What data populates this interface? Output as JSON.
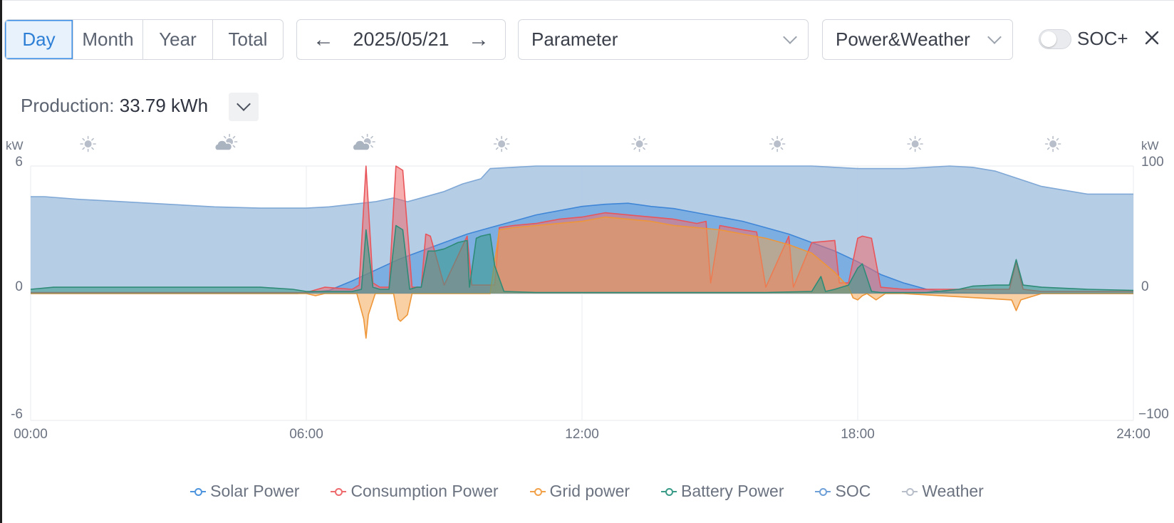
{
  "toolbar": {
    "tabs": [
      {
        "label": "Day",
        "active": true
      },
      {
        "label": "Month",
        "active": false
      },
      {
        "label": "Year",
        "active": false
      },
      {
        "label": "Total",
        "active": false
      }
    ],
    "prev_icon": "arrow-left",
    "date": "2025/05/21",
    "next_icon": "arrow-right",
    "parameter_select": "Parameter",
    "view_select": "Power&Weather",
    "soc_toggle_label": "SOC+",
    "soc_toggle_on": false,
    "close_icon": "close"
  },
  "summary": {
    "label": "Production:",
    "value": "33.79 kWh",
    "expand_icon": "chevron-down"
  },
  "colors": {
    "accent": "#3a8ee6",
    "solar": "#4f95de",
    "consumption": "#ee6b6e",
    "grid": "#f2a24a",
    "battery": "#3a9b88",
    "soc": "#a9c4e2",
    "weather": "#b8bfca"
  },
  "chart_data": {
    "type": "area",
    "left_axis": {
      "unit": "kW",
      "range": [
        -6,
        6
      ],
      "ticks": [
        "6",
        "0",
        "-6"
      ]
    },
    "right_axis": {
      "unit": "kW",
      "range": [
        -100,
        100
      ],
      "ticks": [
        "100",
        "0",
        "−100"
      ]
    },
    "x_range_hours": [
      0,
      24
    ],
    "x_ticks": [
      "00:00",
      "06:00",
      "12:00",
      "18:00",
      "24:00"
    ],
    "weather": [
      {
        "hour": 1.25,
        "icon": "sunny"
      },
      {
        "hour": 4.25,
        "icon": "partly-cloudy"
      },
      {
        "hour": 7.25,
        "icon": "partly-cloudy"
      },
      {
        "hour": 10.25,
        "icon": "sunny"
      },
      {
        "hour": 13.25,
        "icon": "sunny"
      },
      {
        "hour": 16.25,
        "icon": "sunny"
      },
      {
        "hour": 19.25,
        "icon": "sunny"
      },
      {
        "hour": 22.25,
        "icon": "sunny"
      }
    ],
    "series": [
      {
        "name": "SOC",
        "axis": "right",
        "x": [
          0,
          0.3,
          1,
          2,
          3,
          4,
          5,
          5.5,
          6,
          6.5,
          7,
          7.5,
          7.9,
          8.2,
          8.5,
          9,
          9.4,
          9.8,
          10,
          10.5,
          11,
          12,
          14,
          16,
          17,
          17.5,
          18,
          19,
          20,
          20.5,
          21,
          22,
          23,
          24
        ],
        "values": [
          76,
          76,
          74,
          72,
          70,
          68,
          67,
          67,
          67,
          68,
          70,
          72,
          75,
          72,
          75,
          80,
          86,
          90,
          98,
          99,
          100,
          100,
          100,
          100,
          100,
          99,
          98,
          98,
          100,
          99,
          96,
          84,
          78,
          78
        ]
      },
      {
        "name": "Solar Power",
        "axis": "left",
        "x": [
          0,
          5.8,
          6.5,
          7,
          7.5,
          8,
          8.5,
          9,
          9.5,
          10,
          10.5,
          11,
          11.5,
          12,
          12.5,
          13,
          13.5,
          14,
          14.5,
          15,
          15.5,
          16,
          16.5,
          17,
          17.5,
          18,
          18.5,
          19,
          19.5,
          20,
          21,
          24
        ],
        "values": [
          0,
          0,
          0.15,
          0.6,
          1.1,
          1.6,
          2.0,
          2.4,
          2.8,
          3.1,
          3.4,
          3.7,
          3.9,
          4.1,
          4.2,
          4.25,
          4.1,
          4.0,
          3.8,
          3.6,
          3.4,
          3.1,
          2.8,
          2.4,
          2.0,
          1.5,
          0.9,
          0.5,
          0.2,
          0.05,
          0,
          0
        ]
      },
      {
        "name": "Consumption Power",
        "axis": "left",
        "x": [
          0,
          6,
          6.4,
          7.0,
          7.15,
          7.3,
          7.45,
          7.6,
          7.8,
          7.95,
          8.1,
          8.3,
          8.5,
          8.6,
          8.7,
          9.0,
          9.5,
          9.6,
          9.8,
          10.1,
          10.2,
          10.5,
          11,
          11.5,
          12,
          12.5,
          13,
          13.5,
          14,
          14.5,
          14.7,
          14.8,
          15,
          15.5,
          15.8,
          16.0,
          16.5,
          16.6,
          17.0,
          17.5,
          17.6,
          17.8,
          18.0,
          18.1,
          18.3,
          18.5,
          19,
          21.3,
          21.45,
          21.6,
          22,
          24
        ],
        "values": [
          0.05,
          0.05,
          0.3,
          0.2,
          0.4,
          6.0,
          0.5,
          0.3,
          0.3,
          6.0,
          5.8,
          0.3,
          0.3,
          2.8,
          2.7,
          0.4,
          2.7,
          0.4,
          0.4,
          0.4,
          3.1,
          3.2,
          3.3,
          3.5,
          3.6,
          3.8,
          3.7,
          3.6,
          3.5,
          3.3,
          3.4,
          0.5,
          3.2,
          3.0,
          2.9,
          0.3,
          2.7,
          0.3,
          2.4,
          2.5,
          0.5,
          0.5,
          2.6,
          2.7,
          2.6,
          0.3,
          0.2,
          0.2,
          1.5,
          0.2,
          0.1,
          0.1
        ]
      },
      {
        "name": "Grid power",
        "axis": "left",
        "x": [
          0,
          6,
          6.2,
          6.4,
          7.1,
          7.25,
          7.3,
          7.35,
          7.5,
          7.9,
          8.0,
          8.05,
          8.2,
          8.3,
          9.0,
          10,
          10.2,
          10.5,
          11,
          11.5,
          12,
          12.5,
          13,
          13.5,
          14,
          14.5,
          15,
          15.5,
          16,
          16.5,
          17,
          17.5,
          17.8,
          17.9,
          18.0,
          18.1,
          18.2,
          18.4,
          18.6,
          19,
          21.35,
          21.45,
          21.55,
          22,
          24
        ],
        "values": [
          0,
          0,
          -0.1,
          0,
          0,
          -1.2,
          -2.1,
          -1.0,
          0,
          0,
          -1.2,
          -1.3,
          -1.0,
          0,
          0,
          0,
          3.0,
          3.1,
          3.2,
          3.3,
          3.4,
          3.6,
          3.5,
          3.4,
          3.2,
          3.1,
          3.0,
          2.8,
          2.6,
          2.3,
          1.9,
          1.0,
          0.3,
          -0.2,
          -0.3,
          -0.1,
          0,
          -0.3,
          0,
          0,
          -0.3,
          -0.8,
          -0.3,
          0,
          0
        ]
      },
      {
        "name": "Battery Power",
        "axis": "left",
        "x": [
          0,
          0.5,
          1.2,
          2,
          3,
          4,
          5,
          5.7,
          6.0,
          7.0,
          7.2,
          7.3,
          7.45,
          7.6,
          7.8,
          7.95,
          8.1,
          8.25,
          8.4,
          8.5,
          8.65,
          8.8,
          9.0,
          9.2,
          9.3,
          9.5,
          9.55,
          9.7,
          9.8,
          10.0,
          10.1,
          10.3,
          11,
          12,
          14,
          16,
          17.0,
          17.2,
          17.3,
          17.5,
          17.8,
          18.0,
          18.1,
          18.3,
          18.5,
          19.5,
          20.2,
          20.5,
          21,
          21.3,
          21.45,
          21.6,
          22,
          23,
          24
        ],
        "values": [
          0.2,
          0.3,
          0.3,
          0.3,
          0.3,
          0.3,
          0.3,
          0.2,
          0.1,
          0.1,
          0.2,
          3.0,
          0.3,
          0.2,
          0.2,
          3.2,
          3.0,
          0.2,
          0.3,
          0.3,
          2.0,
          2.0,
          2.1,
          2.3,
          2.4,
          2.5,
          0.3,
          2.6,
          2.7,
          2.8,
          1.3,
          0.1,
          0.05,
          0.05,
          0.05,
          0.05,
          0.1,
          0.8,
          0.1,
          0.2,
          0.4,
          1.2,
          1.4,
          0.1,
          0.05,
          0.05,
          0.2,
          0.35,
          0.4,
          0.4,
          1.6,
          0.4,
          0.3,
          0.2,
          0.15
        ]
      }
    ],
    "legend": [
      {
        "name": "Solar Power",
        "color": "#4f95de"
      },
      {
        "name": "Consumption Power",
        "color": "#ee6b6e"
      },
      {
        "name": "Grid power",
        "color": "#f2a24a"
      },
      {
        "name": "Battery Power",
        "color": "#3a9b88"
      },
      {
        "name": "SOC",
        "color": "#6fa0d8"
      },
      {
        "name": "Weather",
        "color": "#b8bfca"
      }
    ],
    "grid": true,
    "legend_position": "bottom"
  }
}
